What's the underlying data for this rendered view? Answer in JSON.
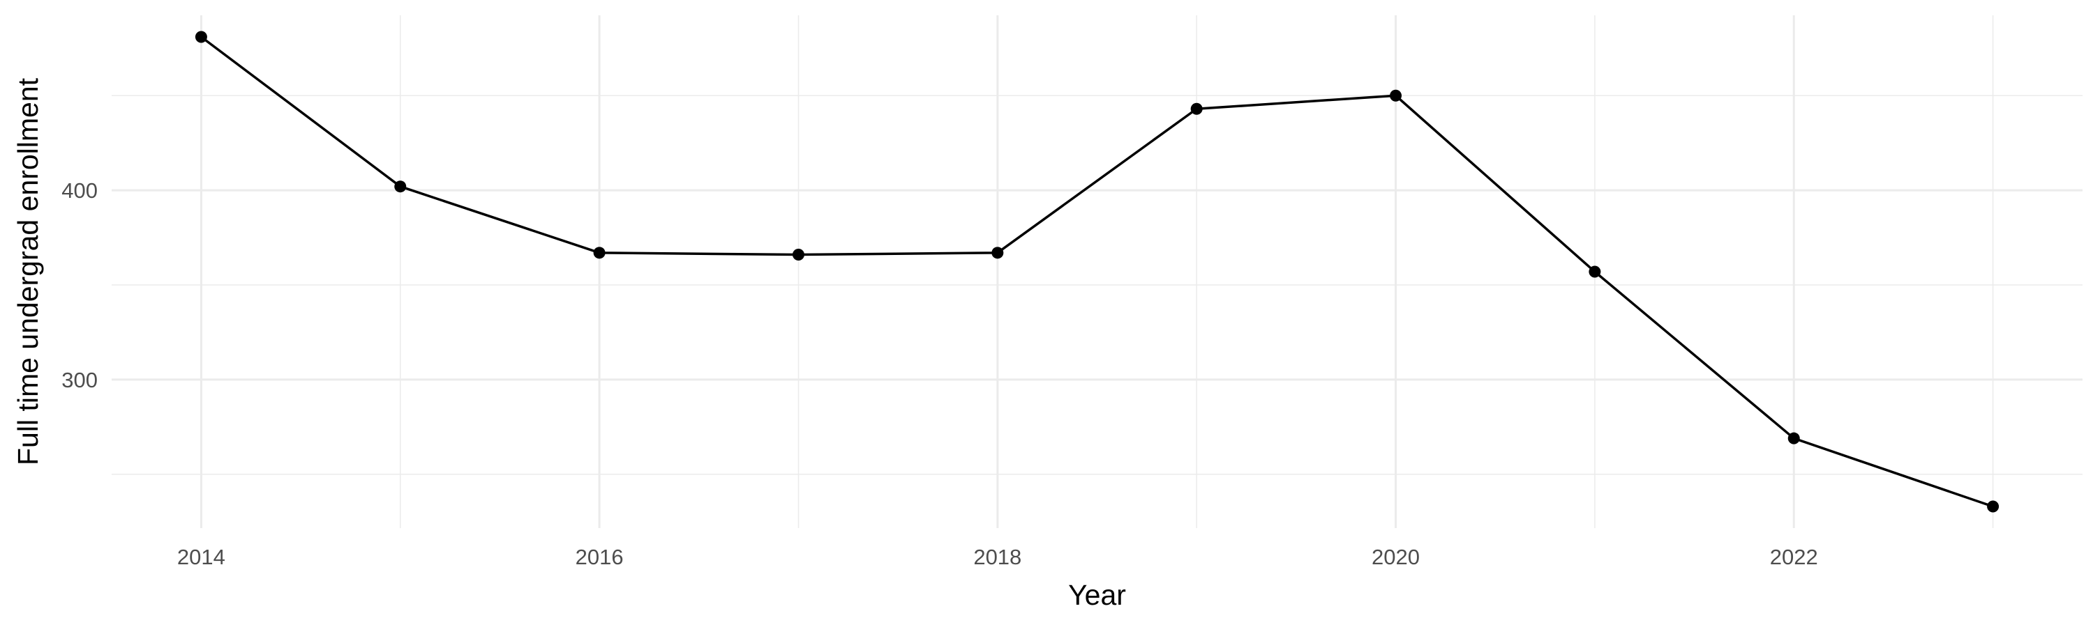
{
  "chart_data": {
    "type": "line",
    "title": "",
    "xlabel": "Year",
    "ylabel": "Full time undergrad enrollment",
    "x": [
      2014,
      2015,
      2016,
      2017,
      2018,
      2019,
      2020,
      2021,
      2022,
      2023
    ],
    "series": [
      {
        "values": [
          481,
          402,
          367,
          366,
          367,
          443,
          450,
          357,
          269,
          233
        ]
      }
    ],
    "x_ticks": [
      2014,
      2016,
      2018,
      2020,
      2022
    ],
    "x_tick_labels": [
      "2014",
      "2016",
      "2018",
      "2020",
      "2022"
    ],
    "y_ticks": [
      300,
      400
    ],
    "y_tick_labels": [
      "300",
      "400"
    ],
    "xlim": [
      2013.55,
      2023.45
    ],
    "ylim": [
      221.6,
      492.4
    ],
    "grid": true,
    "legend": "none",
    "colors": {
      "line": "#000000",
      "point": "#000000",
      "grid_major": "#ebebeb",
      "grid_minor": "#f5f5f5",
      "tick_text": "#4d4d4d",
      "axis_title": "#000000",
      "background": "#ffffff"
    }
  }
}
